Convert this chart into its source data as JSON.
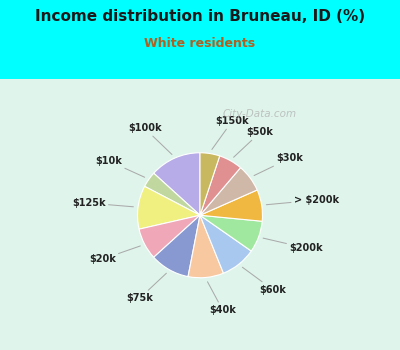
{
  "title": "Income distribution in Bruneau, ID (%)",
  "subtitle": "White residents",
  "title_color": "#1a1a1a",
  "subtitle_color": "#b06020",
  "bg_outer": "#00ffff",
  "bg_inner_top": "#e0f5f0",
  "bg_inner_bottom": "#c8eedd",
  "labels": [
    "$100k",
    "$10k",
    "$125k",
    "$20k",
    "$75k",
    "$40k",
    "$60k",
    "$200k",
    "> $200k",
    "$30k",
    "$50k",
    "$150k"
  ],
  "values": [
    13,
    4,
    11,
    8,
    10,
    9,
    9,
    8,
    8,
    7,
    6,
    5
  ],
  "colors": [
    "#b8ace8",
    "#c0d8a0",
    "#f0f080",
    "#f0a8b8",
    "#8898d0",
    "#f8c8a0",
    "#a8c8f0",
    "#a0e8a0",
    "#f0b840",
    "#d0b8a8",
    "#e09090",
    "#c8b860"
  ],
  "start_angle": 90,
  "figsize": [
    4.0,
    3.5
  ],
  "dpi": 100,
  "watermark": "City-Data.com",
  "title_fontsize": 11,
  "subtitle_fontsize": 9,
  "label_fontsize": 7
}
